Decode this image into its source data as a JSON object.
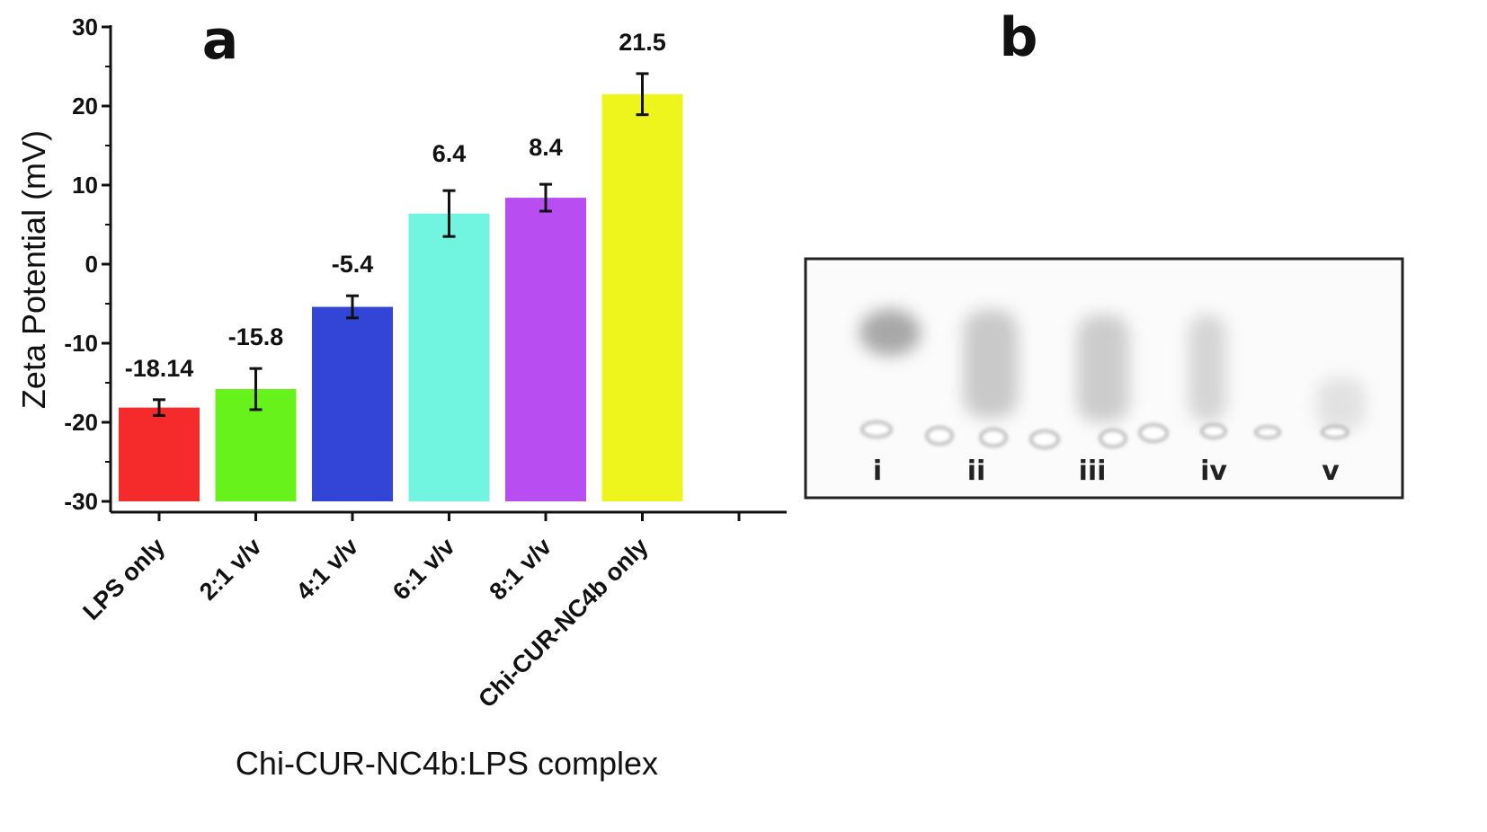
{
  "panels": {
    "a": "a",
    "b": "b"
  },
  "chart_data": {
    "type": "bar",
    "title": "",
    "xlabel": "Chi-CUR-NC4b:LPS complex",
    "ylabel": "Zeta Potential (mV)",
    "ylim": [
      -30,
      30
    ],
    "yticks": [
      "30",
      "20",
      "10",
      "0",
      "-10",
      "-20",
      "-30"
    ],
    "categories": [
      "LPS only",
      "2:1 v/v",
      "4:1 v/v",
      "6:1 v/v",
      "8:1 v/v",
      "Chi-CUR-NC4b only"
    ],
    "values": [
      -18.14,
      -15.8,
      -5.4,
      6.4,
      8.4,
      21.5
    ],
    "value_labels": [
      "-18.14",
      "-15.8",
      "-5.4",
      "6.4",
      "8.4",
      "21.5"
    ],
    "errors": [
      1.0,
      2.6,
      1.4,
      2.9,
      1.7,
      2.6
    ],
    "colors": [
      "#f52a2a",
      "#66f21a",
      "#3345d6",
      "#72f5e0",
      "#b84ef2",
      "#eef51c"
    ],
    "grid": false,
    "legend": "none"
  },
  "gel": {
    "lanes": [
      "i",
      "ii",
      "iii",
      "iv",
      "v"
    ]
  }
}
